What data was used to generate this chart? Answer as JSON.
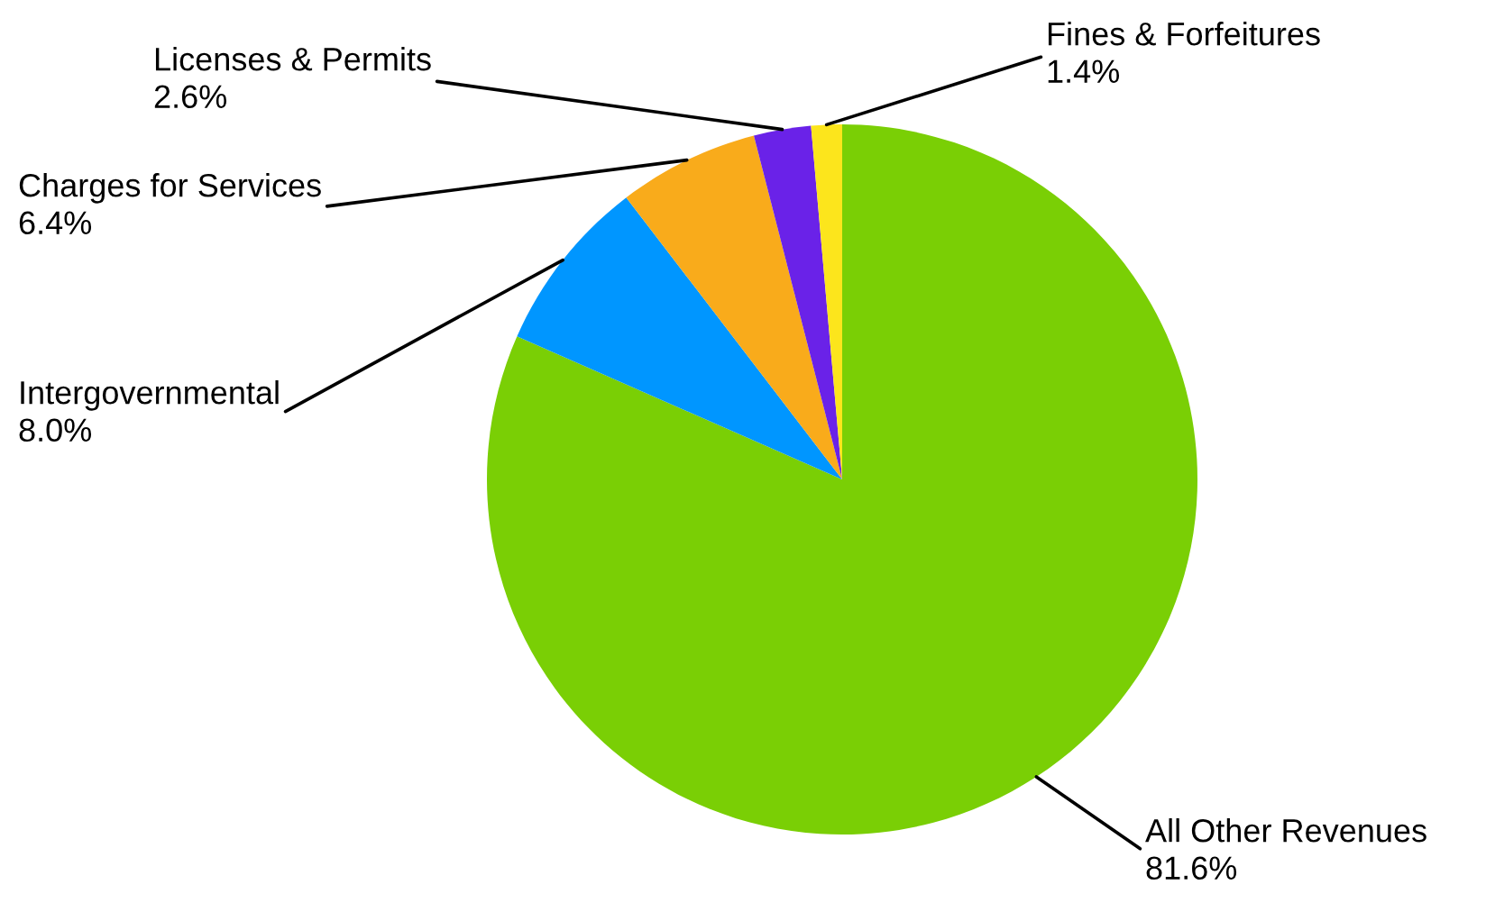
{
  "chart_data": {
    "type": "pie",
    "categories": [
      "All Other Revenues",
      "Intergovernmental",
      "Charges for Services",
      "Licenses & Permits",
      "Fines & Forfeitures"
    ],
    "values": [
      81.6,
      8.0,
      6.4,
      2.6,
      1.4
    ],
    "value_labels": [
      "81.6%",
      "8.0%",
      "6.4%",
      "2.6%",
      "1.4%"
    ],
    "colors": [
      "#7acf05",
      "#0096ff",
      "#f9ab1b",
      "#6a22e8",
      "#fce51c"
    ],
    "legend": false
  }
}
